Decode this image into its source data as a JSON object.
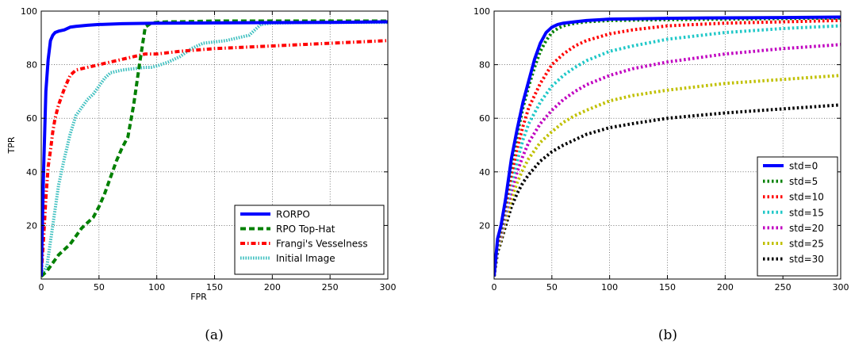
{
  "chart_data": [
    {
      "type": "line",
      "xlabel": "FPR",
      "ylabel": "TPR",
      "xlim": [
        0,
        300
      ],
      "ylim": [
        0,
        100
      ],
      "xticks": [
        0,
        50,
        100,
        150,
        200,
        250,
        300
      ],
      "yticks": [
        20,
        40,
        60,
        80,
        100
      ],
      "grid": true,
      "legend_position": "bottom-right",
      "caption": "(a)",
      "series": [
        {
          "name": "RORPO",
          "color": "#0000ff",
          "dash": "solid",
          "x": [
            0,
            2,
            4,
            6,
            8,
            10,
            12,
            15,
            20,
            25,
            30,
            40,
            50,
            70,
            100,
            150,
            200,
            250,
            300
          ],
          "y": [
            1,
            40,
            70,
            82,
            89,
            91,
            92,
            92.5,
            93,
            94,
            94.3,
            94.7,
            95,
            95.3,
            95.5,
            95.6,
            95.7,
            95.8,
            96
          ]
        },
        {
          "name": "RPO Top-Hat",
          "color": "#008000",
          "dash": "dashed",
          "x": [
            0,
            5,
            10,
            15,
            20,
            25,
            30,
            35,
            40,
            45,
            50,
            55,
            60,
            65,
            70,
            75,
            80,
            85,
            90,
            95,
            100,
            110,
            120,
            150,
            200,
            250,
            300
          ],
          "y": [
            1,
            3,
            6,
            9,
            11,
            13,
            16,
            19,
            21,
            23,
            27,
            32,
            38,
            44,
            49,
            53,
            65,
            80,
            94,
            95.5,
            95.8,
            96,
            96,
            96.3,
            96.3,
            96.3,
            96.3
          ]
        },
        {
          "name": "Frangi's Vesselness",
          "color": "#ff0000",
          "dash": "dashdot",
          "x": [
            0,
            2,
            4,
            6,
            8,
            10,
            12,
            15,
            20,
            25,
            30,
            40,
            50,
            60,
            70,
            80,
            90,
            100,
            120,
            150,
            200,
            250,
            300
          ],
          "y": [
            2,
            15,
            30,
            42,
            48,
            55,
            60,
            65,
            71,
            76,
            78,
            79,
            80,
            81,
            82,
            83,
            84,
            84,
            85,
            86,
            87,
            88,
            89
          ]
        },
        {
          "name": "Initial Image",
          "color": "#40c0c0",
          "dash": "dotted",
          "x": [
            0,
            5,
            10,
            15,
            20,
            25,
            30,
            35,
            40,
            45,
            50,
            55,
            60,
            70,
            80,
            90,
            95,
            100,
            110,
            120,
            130,
            140,
            150,
            160,
            170,
            180,
            190,
            200,
            220,
            250,
            300
          ],
          "y": [
            1,
            5,
            20,
            35,
            45,
            54,
            61,
            64,
            67,
            69,
            72,
            75,
            77,
            78,
            78.5,
            79,
            79,
            79.5,
            81,
            83,
            86,
            88,
            88.5,
            89,
            90,
            91,
            95,
            95.5,
            95.7,
            95.8,
            95.8
          ]
        }
      ]
    },
    {
      "type": "line",
      "xlim": [
        0,
        300
      ],
      "ylim": [
        0,
        100
      ],
      "xticks": [
        0,
        50,
        100,
        150,
        200,
        250,
        300
      ],
      "yticks": [
        20,
        40,
        60,
        80,
        100
      ],
      "grid": true,
      "legend_position": "bottom-right",
      "caption": "(b)",
      "series": [
        {
          "name": "std=0",
          "color": "#0000ff",
          "dash": "solid",
          "x": [
            0,
            3,
            6,
            10,
            15,
            20,
            25,
            30,
            35,
            40,
            45,
            50,
            55,
            60,
            70,
            80,
            100,
            150,
            200,
            250,
            300
          ],
          "y": [
            1,
            15,
            20,
            30,
            45,
            56,
            66,
            74,
            82,
            88,
            92,
            94,
            95,
            95.5,
            96,
            96.5,
            97,
            97.3,
            97.5,
            97.6,
            97.8
          ]
        },
        {
          "name": "std=5",
          "color": "#008000",
          "dash": "dotdash",
          "x": [
            0,
            3,
            6,
            10,
            15,
            20,
            25,
            30,
            35,
            40,
            45,
            50,
            55,
            60,
            70,
            80,
            100,
            150,
            200,
            250,
            300
          ],
          "y": [
            1,
            14,
            19,
            29,
            43,
            54,
            64,
            72,
            79,
            85,
            89,
            92,
            93.5,
            94.5,
            95.5,
            96,
            96.5,
            96.8,
            97,
            97.2,
            97.4
          ]
        },
        {
          "name": "std=10",
          "color": "#ff0000",
          "dash": "dotdash",
          "x": [
            0,
            3,
            6,
            10,
            15,
            20,
            25,
            30,
            40,
            50,
            60,
            70,
            80,
            100,
            120,
            150,
            200,
            250,
            300
          ],
          "y": [
            1,
            13,
            18,
            27,
            39,
            49,
            57,
            64,
            73,
            80,
            84,
            87,
            89,
            91.5,
            93,
            94.5,
            95.5,
            96,
            96.5
          ]
        },
        {
          "name": "std=15",
          "color": "#20c8c8",
          "dash": "dotdash",
          "x": [
            0,
            3,
            6,
            10,
            15,
            20,
            25,
            30,
            40,
            50,
            60,
            70,
            80,
            100,
            120,
            150,
            200,
            250,
            300
          ],
          "y": [
            1,
            12,
            17,
            25,
            36,
            44,
            52,
            58,
            66,
            72,
            76,
            79,
            81.5,
            85,
            87,
            89.5,
            92,
            93.5,
            94.5
          ]
        },
        {
          "name": "std=20",
          "color": "#c000c0",
          "dash": "dotdash",
          "x": [
            0,
            3,
            6,
            10,
            15,
            20,
            25,
            30,
            40,
            50,
            60,
            70,
            80,
            100,
            120,
            150,
            200,
            250,
            300
          ],
          "y": [
            1,
            12,
            16,
            24,
            33,
            40,
            46,
            51,
            58,
            63,
            67,
            70,
            72.5,
            76,
            78.5,
            81,
            84,
            86,
            87.5
          ]
        },
        {
          "name": "std=25",
          "color": "#c0c000",
          "dash": "dotdash",
          "x": [
            0,
            3,
            6,
            10,
            15,
            20,
            25,
            30,
            40,
            50,
            60,
            70,
            80,
            100,
            120,
            150,
            200,
            250,
            300
          ],
          "y": [
            1,
            11,
            15,
            22,
            30,
            36,
            41,
            45,
            51,
            55,
            58.5,
            61,
            63,
            66.5,
            68.5,
            70.5,
            73,
            74.5,
            76
          ]
        },
        {
          "name": "std=30",
          "color": "#000000",
          "dash": "dotdash",
          "x": [
            0,
            3,
            6,
            10,
            15,
            20,
            25,
            30,
            40,
            50,
            60,
            70,
            80,
            100,
            120,
            150,
            200,
            250,
            300
          ],
          "y": [
            1,
            10,
            14,
            20,
            27,
            32,
            36,
            39,
            44,
            47.5,
            50,
            52,
            54,
            56.5,
            58,
            60,
            62,
            63.5,
            65
          ]
        }
      ]
    }
  ]
}
